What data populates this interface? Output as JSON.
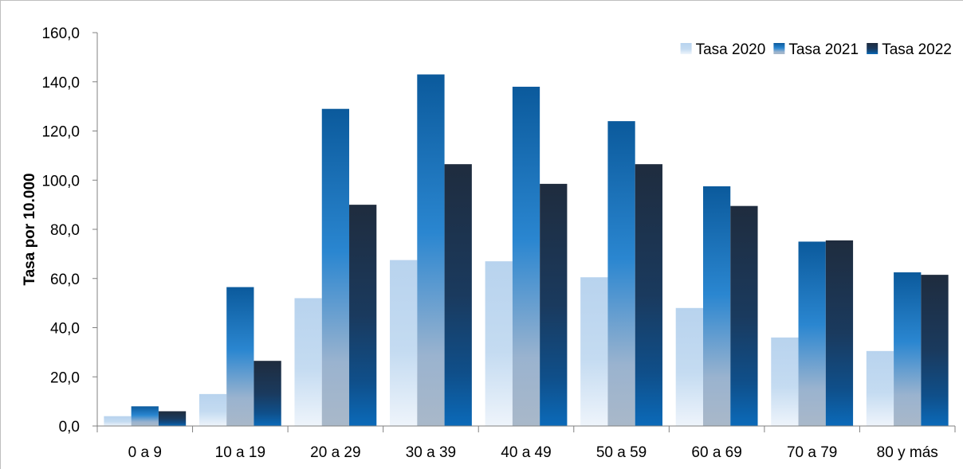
{
  "chart_data": {
    "type": "bar",
    "title": "",
    "xlabel": "",
    "ylabel": "Tasa por 10.000",
    "ylim": [
      0,
      160
    ],
    "yticks": [
      "0,0",
      "20,0",
      "40,0",
      "60,0",
      "80,0",
      "100,0",
      "120,0",
      "140,0",
      "160,0"
    ],
    "categories": [
      "0 a 9",
      "10 a 19",
      "20 a 29",
      "30 a 39",
      "40 a 49",
      "50 a 59",
      "60 a 69",
      "70 a 79",
      "80 y más"
    ],
    "series": [
      {
        "name": "Tasa 2020",
        "values": [
          4.0,
          13.0,
          52.0,
          67.5,
          67.0,
          60.5,
          48.0,
          36.0,
          30.5
        ]
      },
      {
        "name": "Tasa 2021",
        "values": [
          8.0,
          56.5,
          129.0,
          143.0,
          138.0,
          124.0,
          97.5,
          75.0,
          62.5
        ]
      },
      {
        "name": "Tasa 2022",
        "values": [
          6.0,
          26.5,
          90.0,
          106.5,
          98.5,
          106.5,
          89.5,
          75.5,
          61.5
        ]
      }
    ],
    "legend_position": "top-right",
    "grid": false,
    "colors": {
      "Tasa 2020": "#b8d3ee",
      "Tasa 2021": "#1a6fb8",
      "Tasa 2022": "#1c2d45"
    }
  }
}
